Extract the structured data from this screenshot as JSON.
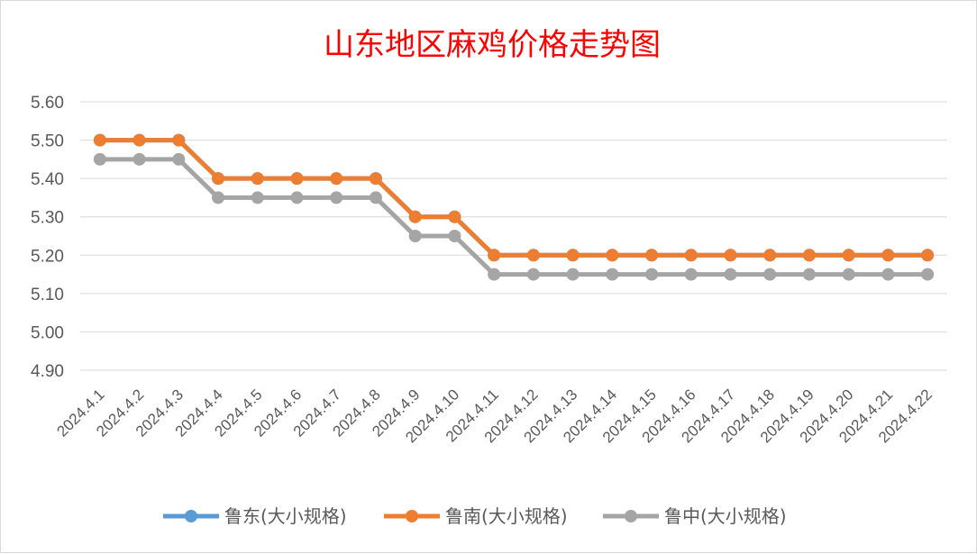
{
  "chart_data": {
    "type": "line",
    "title": "山东地区麻鸡价格走势图",
    "categories": [
      "2024.4.1",
      "2024.4.2",
      "2024.4.3",
      "2024.4.4",
      "2024.4.5",
      "2024.4.6",
      "2024.4.7",
      "2024.4.8",
      "2024.4.9",
      "2024.4.10",
      "2024.4.11",
      "2024.4.12",
      "2024.4.13",
      "2024.4.14",
      "2024.4.15",
      "2024.4.16",
      "2024.4.17",
      "2024.4.18",
      "2024.4.19",
      "2024.4.20",
      "2024.4.21",
      "2024.4.22"
    ],
    "y_ticks": [
      "4.90",
      "5.00",
      "5.10",
      "5.20",
      "5.30",
      "5.40",
      "5.50",
      "5.60"
    ],
    "ylim": [
      4.9,
      5.6
    ],
    "grid": true,
    "legend_position": "bottom",
    "series": [
      {
        "name": "鲁东(大小规格)",
        "color": "#5b9bd5",
        "values": [
          5.5,
          5.5,
          5.5,
          5.4,
          5.4,
          5.4,
          5.4,
          5.4,
          5.3,
          5.3,
          5.2,
          5.2,
          5.2,
          5.2,
          5.2,
          5.2,
          5.2,
          5.2,
          5.2,
          5.2,
          5.2,
          5.2
        ]
      },
      {
        "name": "鲁南(大小规格)",
        "color": "#ed7d31",
        "values": [
          5.5,
          5.5,
          5.5,
          5.4,
          5.4,
          5.4,
          5.4,
          5.4,
          5.3,
          5.3,
          5.2,
          5.2,
          5.2,
          5.2,
          5.2,
          5.2,
          5.2,
          5.2,
          5.2,
          5.2,
          5.2,
          5.2
        ]
      },
      {
        "name": "鲁中(大小规格)",
        "color": "#a5a5a5",
        "values": [
          5.45,
          5.45,
          5.45,
          5.35,
          5.35,
          5.35,
          5.35,
          5.35,
          5.25,
          5.25,
          5.15,
          5.15,
          5.15,
          5.15,
          5.15,
          5.15,
          5.15,
          5.15,
          5.15,
          5.15,
          5.15,
          5.15
        ]
      }
    ]
  }
}
